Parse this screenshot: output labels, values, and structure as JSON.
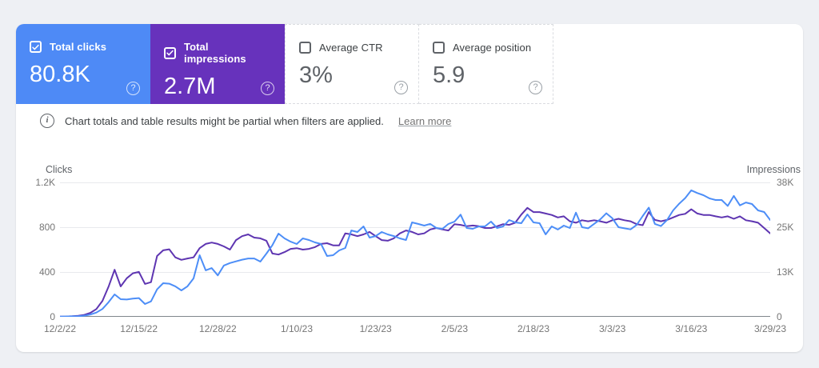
{
  "cards": [
    {
      "label": "Total clicks",
      "value": "80.8K",
      "checked": true,
      "bg": "#4e8af6"
    },
    {
      "label": "Total impressions",
      "value": "2.7M",
      "checked": true,
      "bg": "#6732bc"
    },
    {
      "label": "Average CTR",
      "value": "3%",
      "checked": false,
      "bg": "#ffffff"
    },
    {
      "label": "Average position",
      "value": "5.9",
      "checked": false,
      "bg": "#ffffff"
    }
  ],
  "icons": {
    "help": "?",
    "info": "i"
  },
  "banner": {
    "text": "Chart totals and table results might be partial when filters are applied.",
    "link": "Learn more"
  },
  "chart_data": {
    "type": "line",
    "x_tick_labels": [
      "12/2/22",
      "12/15/22",
      "12/28/22",
      "1/10/23",
      "1/23/23",
      "2/5/23",
      "2/18/23",
      "3/3/23",
      "3/16/23",
      "3/29/23"
    ],
    "left_axis": {
      "label": "Clicks",
      "ticks": [
        "1.2K",
        "800",
        "400",
        "0"
      ],
      "max": 1200
    },
    "right_axis": {
      "label": "Impressions",
      "ticks": [
        "38K",
        "25K",
        "13K",
        "0"
      ],
      "max": 38000
    },
    "grid": "horizontal",
    "series": [
      {
        "name": "Total clicks",
        "axis": "left",
        "color": "#4d8ef7",
        "values": [
          2,
          3,
          4,
          6,
          10,
          20,
          38,
          70,
          130,
          200,
          157,
          154,
          162,
          167,
          114,
          138,
          245,
          300,
          296,
          272,
          236,
          272,
          343,
          550,
          415,
          435,
          370,
          458,
          480,
          495,
          510,
          521,
          521,
          493,
          564,
          640,
          743,
          700,
          671,
          650,
          700,
          686,
          664,
          650,
          543,
          550,
          593,
          614,
          771,
          757,
          807,
          707,
          721,
          757,
          736,
          721,
          700,
          686,
          843,
          829,
          814,
          829,
          793,
          786,
          829,
          850,
          912,
          793,
          786,
          807,
          807,
          850,
          793,
          807,
          864,
          843,
          836,
          914,
          843,
          836,
          736,
          807,
          779,
          814,
          793,
          930,
          800,
          790,
          830,
          870,
          924,
          879,
          800,
          790,
          781,
          820,
          900,
          975,
          829,
          810,
          864,
          950,
          1010,
          1060,
          1129,
          1105,
          1086,
          1057,
          1043,
          1043,
          990,
          1079,
          995,
          1021,
          1007,
          950,
          936,
          864
        ]
      },
      {
        "name": "Total impressions",
        "axis": "right",
        "color": "#5e35b1",
        "values": [
          60,
          100,
          160,
          300,
          550,
          1100,
          2200,
          4500,
          8500,
          13300,
          8600,
          10900,
          12300,
          12700,
          9300,
          9800,
          17200,
          18800,
          19100,
          16800,
          16100,
          16500,
          16800,
          19400,
          20600,
          21000,
          20600,
          19900,
          19000,
          21700,
          22800,
          23300,
          22400,
          22200,
          21500,
          17900,
          17600,
          18300,
          19200,
          19400,
          19000,
          19200,
          19700,
          20600,
          20800,
          20200,
          20200,
          23600,
          23300,
          22800,
          23300,
          24000,
          22800,
          21700,
          21500,
          22200,
          23600,
          24400,
          24000,
          23300,
          23600,
          24700,
          25100,
          24700,
          24400,
          26200,
          26000,
          25600,
          25800,
          25600,
          25100,
          25100,
          25600,
          26200,
          26000,
          26600,
          28900,
          30800,
          29600,
          29600,
          29200,
          28800,
          28100,
          28400,
          27000,
          26600,
          27300,
          27000,
          27300,
          27000,
          26600,
          27300,
          27700,
          27300,
          27000,
          26200,
          25900,
          29600,
          27400,
          27000,
          27400,
          28100,
          28800,
          29100,
          30400,
          29200,
          28800,
          28800,
          28400,
          28100,
          28400,
          27700,
          28400,
          27300,
          27000,
          26600,
          25100,
          23600
        ]
      }
    ]
  }
}
